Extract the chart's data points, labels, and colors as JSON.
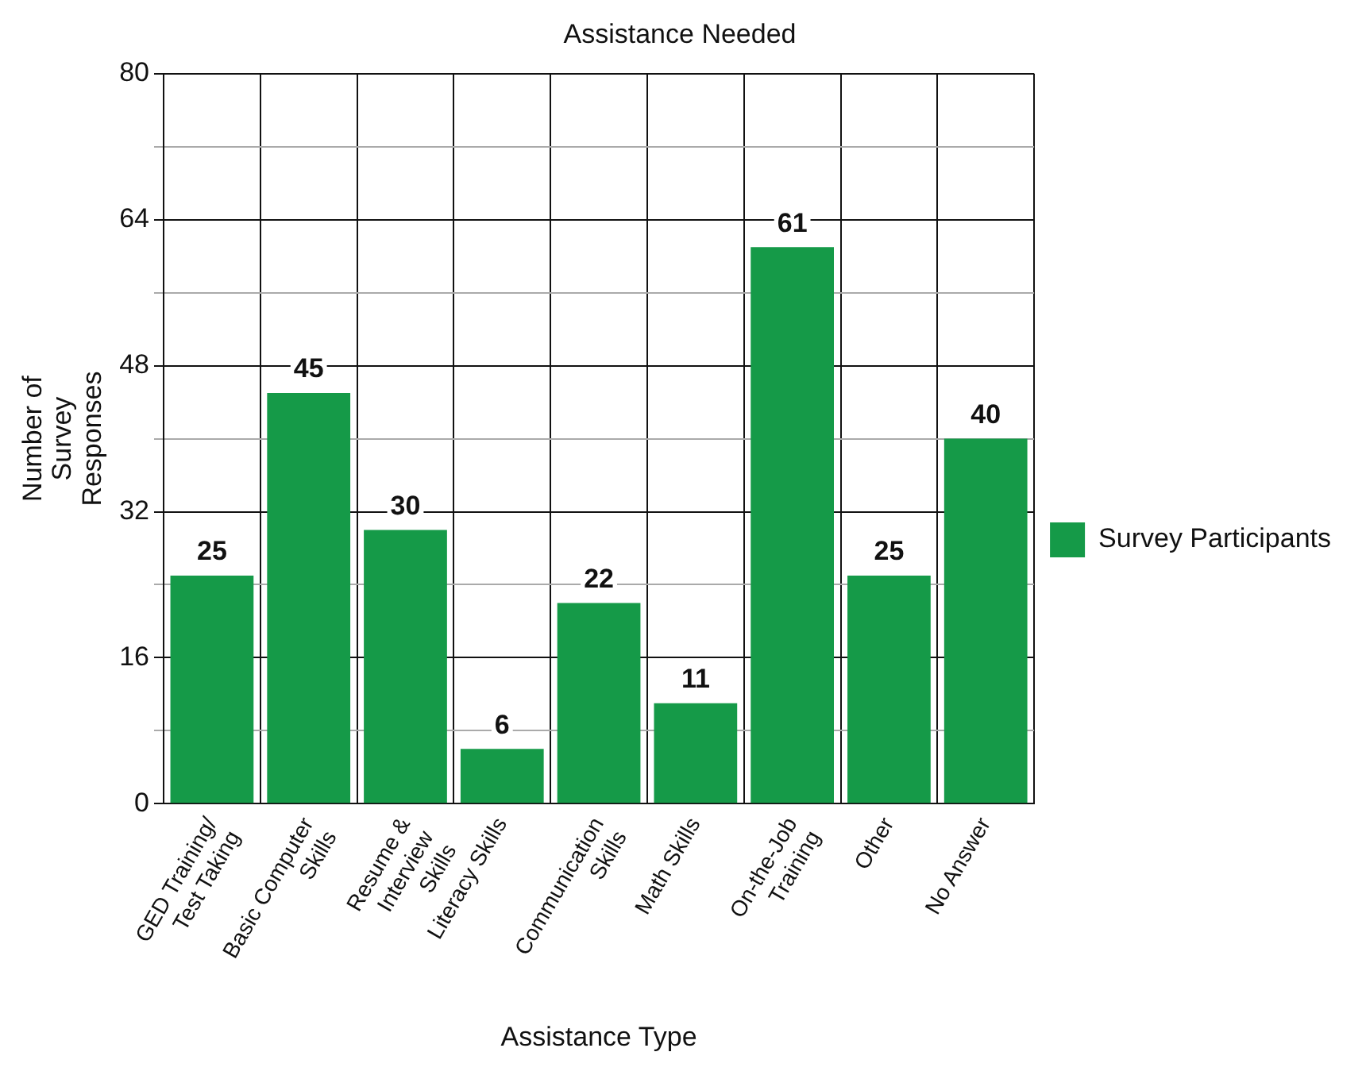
{
  "chart_data": {
    "type": "bar",
    "title": "Assistance Needed",
    "xlabel": "Assistance Type",
    "ylabel": "Number of Survey Responses",
    "categories": [
      "GED Training/ Test Taking",
      "Basic Computer Skills",
      "Resume & Interview Skills",
      "Literacy Skills",
      "Communication Skills",
      "Math Skills",
      "On-the-Job Training",
      "Other",
      "No Answer"
    ],
    "series": [
      {
        "name": "Survey Participants",
        "color": "#159a48",
        "values": [
          25,
          45,
          30,
          6,
          22,
          11,
          61,
          25,
          40
        ]
      }
    ],
    "ylim": [
      0,
      80
    ],
    "yticks": [
      0,
      {
        "value": 8,
        "label": null
      },
      16,
      {
        "value": 24,
        "label": null
      },
      32,
      {
        "value": 40,
        "label": null
      },
      48,
      {
        "value": 56,
        "label": null
      },
      64,
      {
        "value": 72,
        "label": null
      },
      80
    ],
    "grid": true,
    "legend": "right",
    "data_labels": true
  }
}
